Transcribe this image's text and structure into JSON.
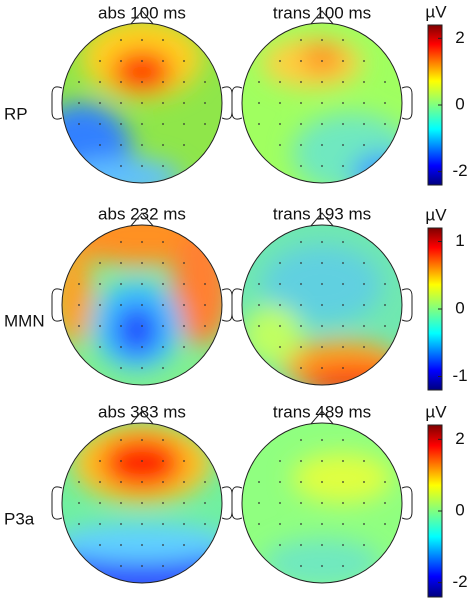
{
  "rows": [
    {
      "label": "RP",
      "titles": [
        "abs 100 ms",
        "trans 100 ms"
      ],
      "colorbar": {
        "unit": "µV",
        "clim": [
          -2.4,
          2.4
        ],
        "ticks": [
          2,
          0,
          -2
        ]
      }
    },
    {
      "label": "MMN",
      "titles": [
        "abs 232 ms",
        "trans 193 ms"
      ],
      "colorbar": {
        "unit": "µV",
        "clim": [
          -1.2,
          1.2
        ],
        "ticks": [
          1,
          0,
          -1
        ]
      }
    },
    {
      "label": "P3a",
      "titles": [
        "abs 383 ms",
        "trans 489 ms"
      ],
      "colorbar": {
        "unit": "µV",
        "clim": [
          -2.4,
          2.4
        ],
        "ticks": [
          2,
          0,
          -2
        ]
      }
    }
  ]
}
